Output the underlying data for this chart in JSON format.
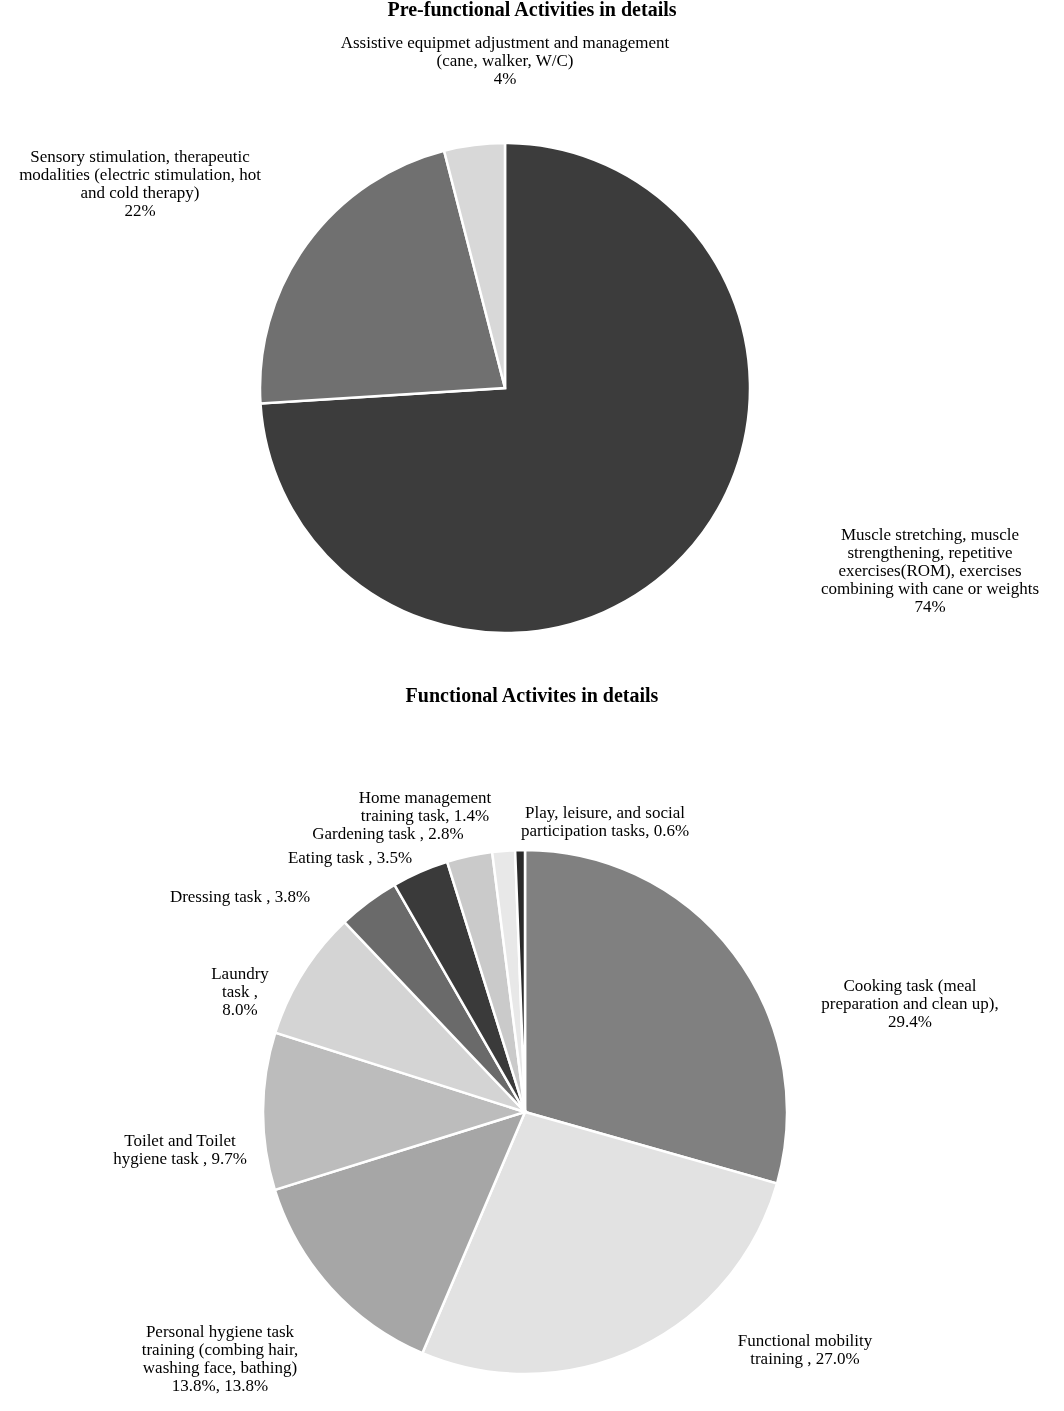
{
  "chart_data": [
    {
      "type": "pie",
      "title": "Pre-functional Activities in details",
      "categories": [
        "Muscle stretching, muscle strengthening, repetitive exercises(ROM), exercises combining with cane or weights",
        "Sensory stimulation, therapeutic modalities (electric stimulation, hot and cold therapy)",
        "Assistive equipmet adjustment and management (cane, walker, W/C)"
      ],
      "values": [
        74,
        22,
        4
      ],
      "value_labels": [
        "74%",
        "22%",
        "4%"
      ],
      "colors": [
        "#3c3c3c",
        "#707070",
        "#d8d8d8"
      ]
    },
    {
      "type": "pie",
      "title": "Functional Activites in details",
      "categories": [
        "Cooking task (meal preparation and clean up)",
        "Functional mobility training ",
        "Personal hygiene task training (combing hair, washing face, bathing) 13.8%",
        "Toilet and Toilet hygiene task ",
        "Laundry task ",
        "Dressing task ",
        "Eating task ",
        "Gardening task ",
        "Home management training task",
        "Play, leisure, and social participation tasks"
      ],
      "values": [
        29.4,
        27.0,
        13.8,
        9.7,
        8.0,
        3.8,
        3.5,
        2.8,
        1.4,
        0.6
      ],
      "value_labels": [
        ", 29.4%",
        ", 27.0%",
        ", 13.8%",
        ", 9.7%",
        ", 8.0%",
        ", 3.8%",
        ", 3.5%",
        ", 2.8%",
        ", 1.4%",
        ", 0.6%"
      ],
      "colors": [
        "#808080",
        "#e2e2e2",
        "#a6a6a6",
        "#bcbcbc",
        "#d4d4d4",
        "#6a6a6a",
        "#3a3a3a",
        "#cacaca",
        "#e8e8e8",
        "#2a2a2a"
      ]
    }
  ]
}
